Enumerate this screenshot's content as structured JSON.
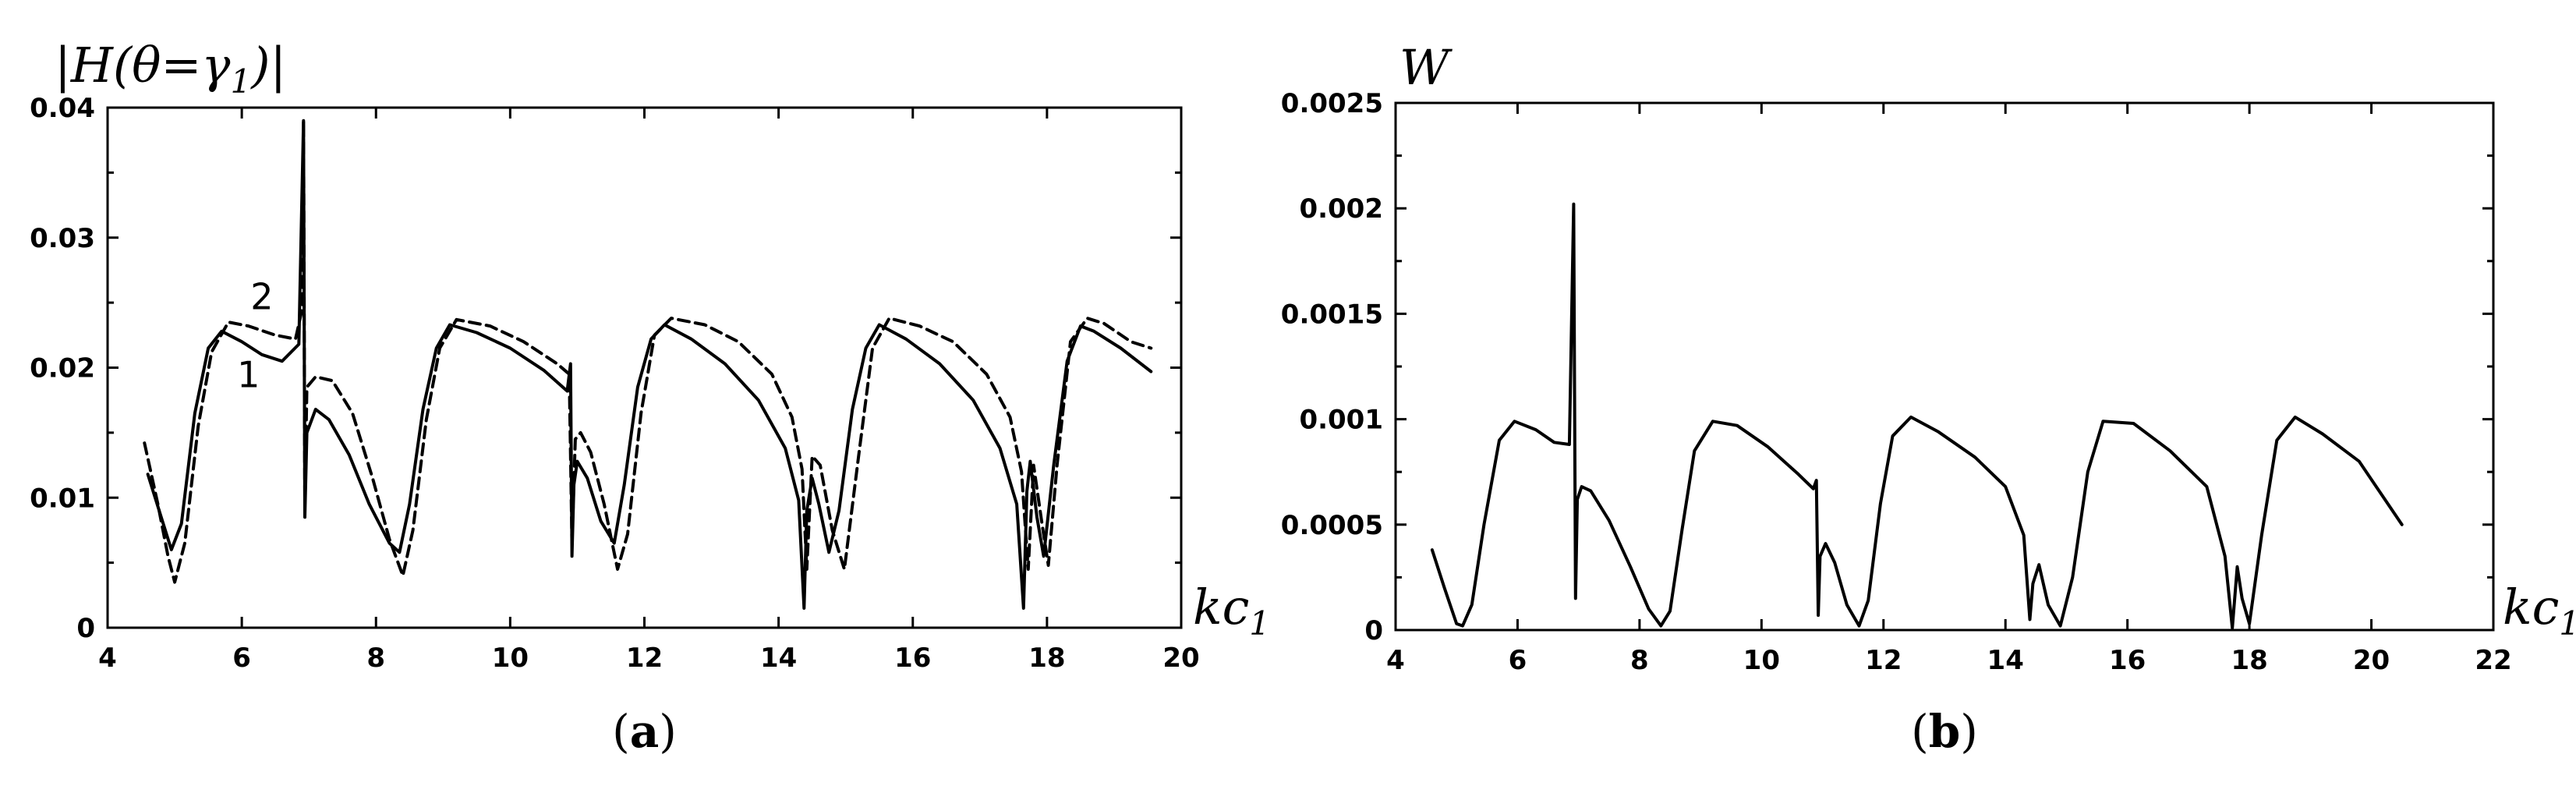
{
  "chart_data": [
    {
      "panel": "(a)",
      "type": "line",
      "title": "",
      "ylabel": "|H(θ=γ1)|",
      "ylabel_parts": {
        "main": "|H(θ=γ",
        "sub": "1",
        "end": ")|"
      },
      "xlabel": "kc1",
      "xlabel_parts": {
        "main": "kc",
        "sub": "1"
      },
      "xlim": [
        4,
        20
      ],
      "ylim": [
        0,
        0.04
      ],
      "xticks": [
        4,
        6,
        8,
        10,
        12,
        14,
        16,
        18,
        20
      ],
      "xtick_labels": [
        "4",
        "6",
        "8",
        "10",
        "12",
        "14",
        "16",
        "18",
        "20"
      ],
      "yticks": [
        0,
        0.01,
        0.02,
        0.03,
        0.04
      ],
      "ytick_labels": [
        "0",
        "0.01",
        "0.02",
        "0.03",
        "0.04"
      ],
      "series": [
        {
          "name": "1",
          "style": "solid",
          "x": [
            4.6,
            4.8,
            4.95,
            5.1,
            5.3,
            5.5,
            5.7,
            6.0,
            6.3,
            6.6,
            6.85,
            6.92,
            6.94,
            6.97,
            7.1,
            7.3,
            7.6,
            7.9,
            8.2,
            8.35,
            8.5,
            8.7,
            8.9,
            9.1,
            9.5,
            10.0,
            10.5,
            10.85,
            10.9,
            10.92,
            10.95,
            11.0,
            11.15,
            11.35,
            11.55,
            11.7,
            11.9,
            12.1,
            12.3,
            12.7,
            13.2,
            13.7,
            14.1,
            14.3,
            14.38,
            14.42,
            14.5,
            14.6,
            14.75,
            14.9,
            15.1,
            15.3,
            15.5,
            15.9,
            16.4,
            16.9,
            17.3,
            17.55,
            17.65,
            17.7,
            17.75,
            17.85,
            17.95,
            18.1,
            18.3,
            18.5,
            18.7,
            19.1,
            19.55
          ],
          "y": [
            0.0118,
            0.0085,
            0.006,
            0.008,
            0.0165,
            0.0215,
            0.0228,
            0.022,
            0.021,
            0.0205,
            0.0218,
            0.039,
            0.0085,
            0.015,
            0.0168,
            0.016,
            0.0133,
            0.0095,
            0.0065,
            0.0058,
            0.0095,
            0.0168,
            0.0215,
            0.0233,
            0.0227,
            0.0215,
            0.0198,
            0.0182,
            0.0203,
            0.0055,
            0.011,
            0.0128,
            0.0115,
            0.0082,
            0.0065,
            0.011,
            0.0185,
            0.0222,
            0.0233,
            0.0222,
            0.0203,
            0.0175,
            0.0138,
            0.0098,
            0.0015,
            0.009,
            0.0115,
            0.0095,
            0.0058,
            0.009,
            0.0168,
            0.0215,
            0.0233,
            0.0222,
            0.0203,
            0.0175,
            0.0138,
            0.0095,
            0.0015,
            0.0105,
            0.0128,
            0.0085,
            0.0055,
            0.0125,
            0.0205,
            0.0232,
            0.0228,
            0.0215,
            0.0197
          ]
        },
        {
          "name": "2",
          "style": "dashed",
          "x": [
            4.55,
            4.75,
            4.9,
            5.0,
            5.15,
            5.35,
            5.55,
            5.8,
            6.1,
            6.5,
            6.8,
            6.9,
            6.92,
            6.94,
            6.97,
            7.1,
            7.35,
            7.65,
            7.95,
            8.2,
            8.4,
            8.55,
            8.75,
            8.95,
            9.2,
            9.7,
            10.2,
            10.7,
            10.88,
            10.92,
            10.97,
            11.05,
            11.2,
            11.4,
            11.6,
            11.75,
            11.95,
            12.15,
            12.4,
            12.9,
            13.4,
            13.9,
            14.2,
            14.35,
            14.42,
            14.5,
            14.62,
            14.8,
            14.98,
            15.2,
            15.4,
            15.65,
            16.1,
            16.6,
            17.1,
            17.45,
            17.62,
            17.72,
            17.8,
            17.92,
            18.02,
            18.15,
            18.35,
            18.6,
            18.85,
            19.25,
            19.55
          ],
          "y": [
            0.0142,
            0.0095,
            0.0055,
            0.0035,
            0.0065,
            0.0155,
            0.0212,
            0.0235,
            0.0232,
            0.0225,
            0.0222,
            0.0245,
            0.039,
            0.0095,
            0.0185,
            0.0193,
            0.019,
            0.0165,
            0.0115,
            0.0068,
            0.004,
            0.0075,
            0.016,
            0.0215,
            0.0237,
            0.0232,
            0.022,
            0.0203,
            0.0195,
            0.0065,
            0.0145,
            0.015,
            0.0135,
            0.0095,
            0.0045,
            0.0072,
            0.0165,
            0.0225,
            0.0238,
            0.0233,
            0.022,
            0.0195,
            0.0162,
            0.0122,
            0.0045,
            0.0132,
            0.0125,
            0.0075,
            0.0045,
            0.0135,
            0.0215,
            0.0238,
            0.0232,
            0.022,
            0.0195,
            0.0162,
            0.012,
            0.0045,
            0.0125,
            0.0082,
            0.0048,
            0.0125,
            0.022,
            0.0238,
            0.0234,
            0.022,
            0.0215
          ]
        }
      ],
      "annotations": [
        {
          "text": "2",
          "x": 6.3,
          "y": 0.0245
        },
        {
          "text": "1",
          "x": 6.1,
          "y": 0.0185
        }
      ]
    },
    {
      "panel": "(b)",
      "type": "line",
      "title": "",
      "ylabel": "W",
      "ylabel_parts": {
        "main": "W",
        "sub": "",
        "end": ""
      },
      "xlabel": "kc1",
      "xlabel_parts": {
        "main": "kc",
        "sub": "1"
      },
      "xlim": [
        4,
        22
      ],
      "ylim": [
        0,
        0.0025
      ],
      "xticks": [
        4,
        6,
        8,
        10,
        12,
        14,
        16,
        18,
        20,
        22
      ],
      "xtick_labels": [
        "4",
        "6",
        "8",
        "10",
        "12",
        "14",
        "16",
        "18",
        "20",
        "22"
      ],
      "yticks": [
        0,
        0.0005,
        0.001,
        0.0015,
        0.002,
        0.0025
      ],
      "ytick_labels": [
        "0",
        "0.0005",
        "0.001",
        "0.0015",
        "0.002",
        "0.0025"
      ],
      "series": [
        {
          "name": "W",
          "style": "solid",
          "x": [
            4.6,
            4.8,
            5.0,
            5.1,
            5.25,
            5.45,
            5.7,
            5.95,
            6.3,
            6.6,
            6.85,
            6.92,
            6.95,
            6.98,
            7.05,
            7.2,
            7.5,
            7.85,
            8.15,
            8.35,
            8.5,
            8.7,
            8.9,
            9.2,
            9.6,
            10.1,
            10.6,
            10.85,
            10.9,
            10.93,
            10.96,
            11.05,
            11.2,
            11.4,
            11.6,
            11.75,
            11.95,
            12.15,
            12.45,
            12.9,
            13.5,
            14.0,
            14.3,
            14.4,
            14.45,
            14.55,
            14.7,
            14.9,
            15.1,
            15.35,
            15.6,
            16.1,
            16.7,
            17.3,
            17.6,
            17.72,
            17.8,
            17.88,
            18.0,
            18.2,
            18.45,
            18.75,
            19.2,
            19.8,
            20.5
          ],
          "y": [
            0.00038,
            0.0002,
            3e-05,
            2e-05,
            0.00012,
            0.0005,
            0.0009,
            0.00099,
            0.00095,
            0.00089,
            0.00088,
            0.00202,
            0.00015,
            0.00062,
            0.00068,
            0.00066,
            0.00052,
            0.0003,
            0.0001,
            2e-05,
            9e-05,
            0.00048,
            0.00085,
            0.00099,
            0.00097,
            0.00087,
            0.00074,
            0.00067,
            0.00071,
            7e-05,
            0.00035,
            0.00041,
            0.00032,
            0.00012,
            2e-05,
            0.00014,
            0.0006,
            0.00092,
            0.00101,
            0.00094,
            0.00082,
            0.00068,
            0.00045,
            5e-05,
            0.00022,
            0.00031,
            0.00012,
            2e-05,
            0.00025,
            0.00075,
            0.00099,
            0.00098,
            0.00085,
            0.00068,
            0.00035,
            1e-05,
            0.0003,
            0.00015,
            3e-05,
            0.00045,
            0.0009,
            0.00101,
            0.00093,
            0.0008,
            0.0005
          ]
        }
      ],
      "annotations": []
    }
  ]
}
